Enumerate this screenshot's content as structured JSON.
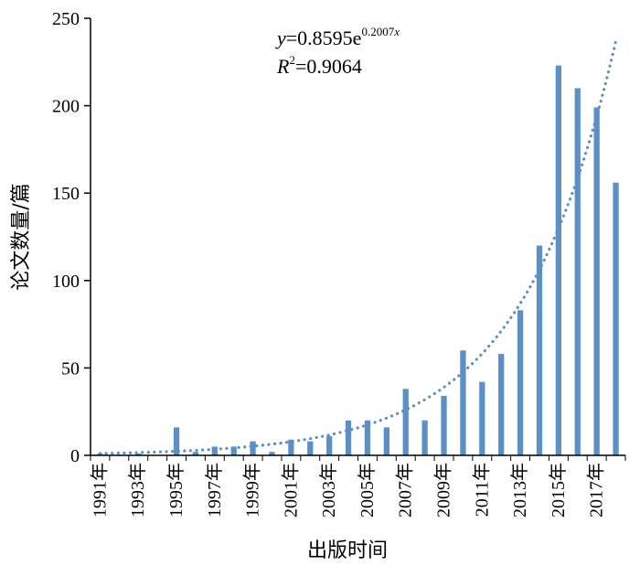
{
  "chart_data": {
    "type": "bar",
    "xlabel": "出版时间",
    "ylabel": "论文数量/篇",
    "ylim": [
      0,
      250
    ],
    "yticks": [
      0,
      50,
      100,
      150,
      200,
      250
    ],
    "grid": false,
    "categories": [
      "1991年",
      "1992年",
      "1993年",
      "1994年",
      "1995年",
      "1996年",
      "1997年",
      "1998年",
      "1999年",
      "2000年",
      "2001年",
      "2002年",
      "2003年",
      "2004年",
      "2005年",
      "2006年",
      "2007年",
      "2008年",
      "2009年",
      "2010年",
      "2011年",
      "2012年",
      "2013年",
      "2014年",
      "2015年",
      "2016年",
      "2017年",
      "2018年"
    ],
    "xtick_labels": [
      "1991年",
      "1993年",
      "1995年",
      "1997年",
      "1999年",
      "2001年",
      "2003年",
      "2005年",
      "2007年",
      "2009年",
      "2011年",
      "2013年",
      "2015年",
      "2017年"
    ],
    "values": [
      1,
      0,
      1,
      0,
      16,
      2,
      5,
      5,
      8,
      2,
      9,
      8,
      11,
      20,
      20,
      16,
      38,
      20,
      34,
      60,
      42,
      58,
      83,
      120,
      223,
      210,
      199,
      156
    ],
    "bar_color": "#5b8fc7",
    "trendline": {
      "type": "exponential",
      "a": 0.8595,
      "b": 0.2007,
      "r2": 0.9064,
      "equation_y": "y",
      "equation_rhs": "=0.8595e",
      "equation_exp": "0.2007",
      "equation_exp_var": "x",
      "r2_label": "R",
      "r2_sup": "2",
      "r2_value": "=0.9064",
      "color": "#5b8fc7",
      "style": "dotted"
    }
  }
}
